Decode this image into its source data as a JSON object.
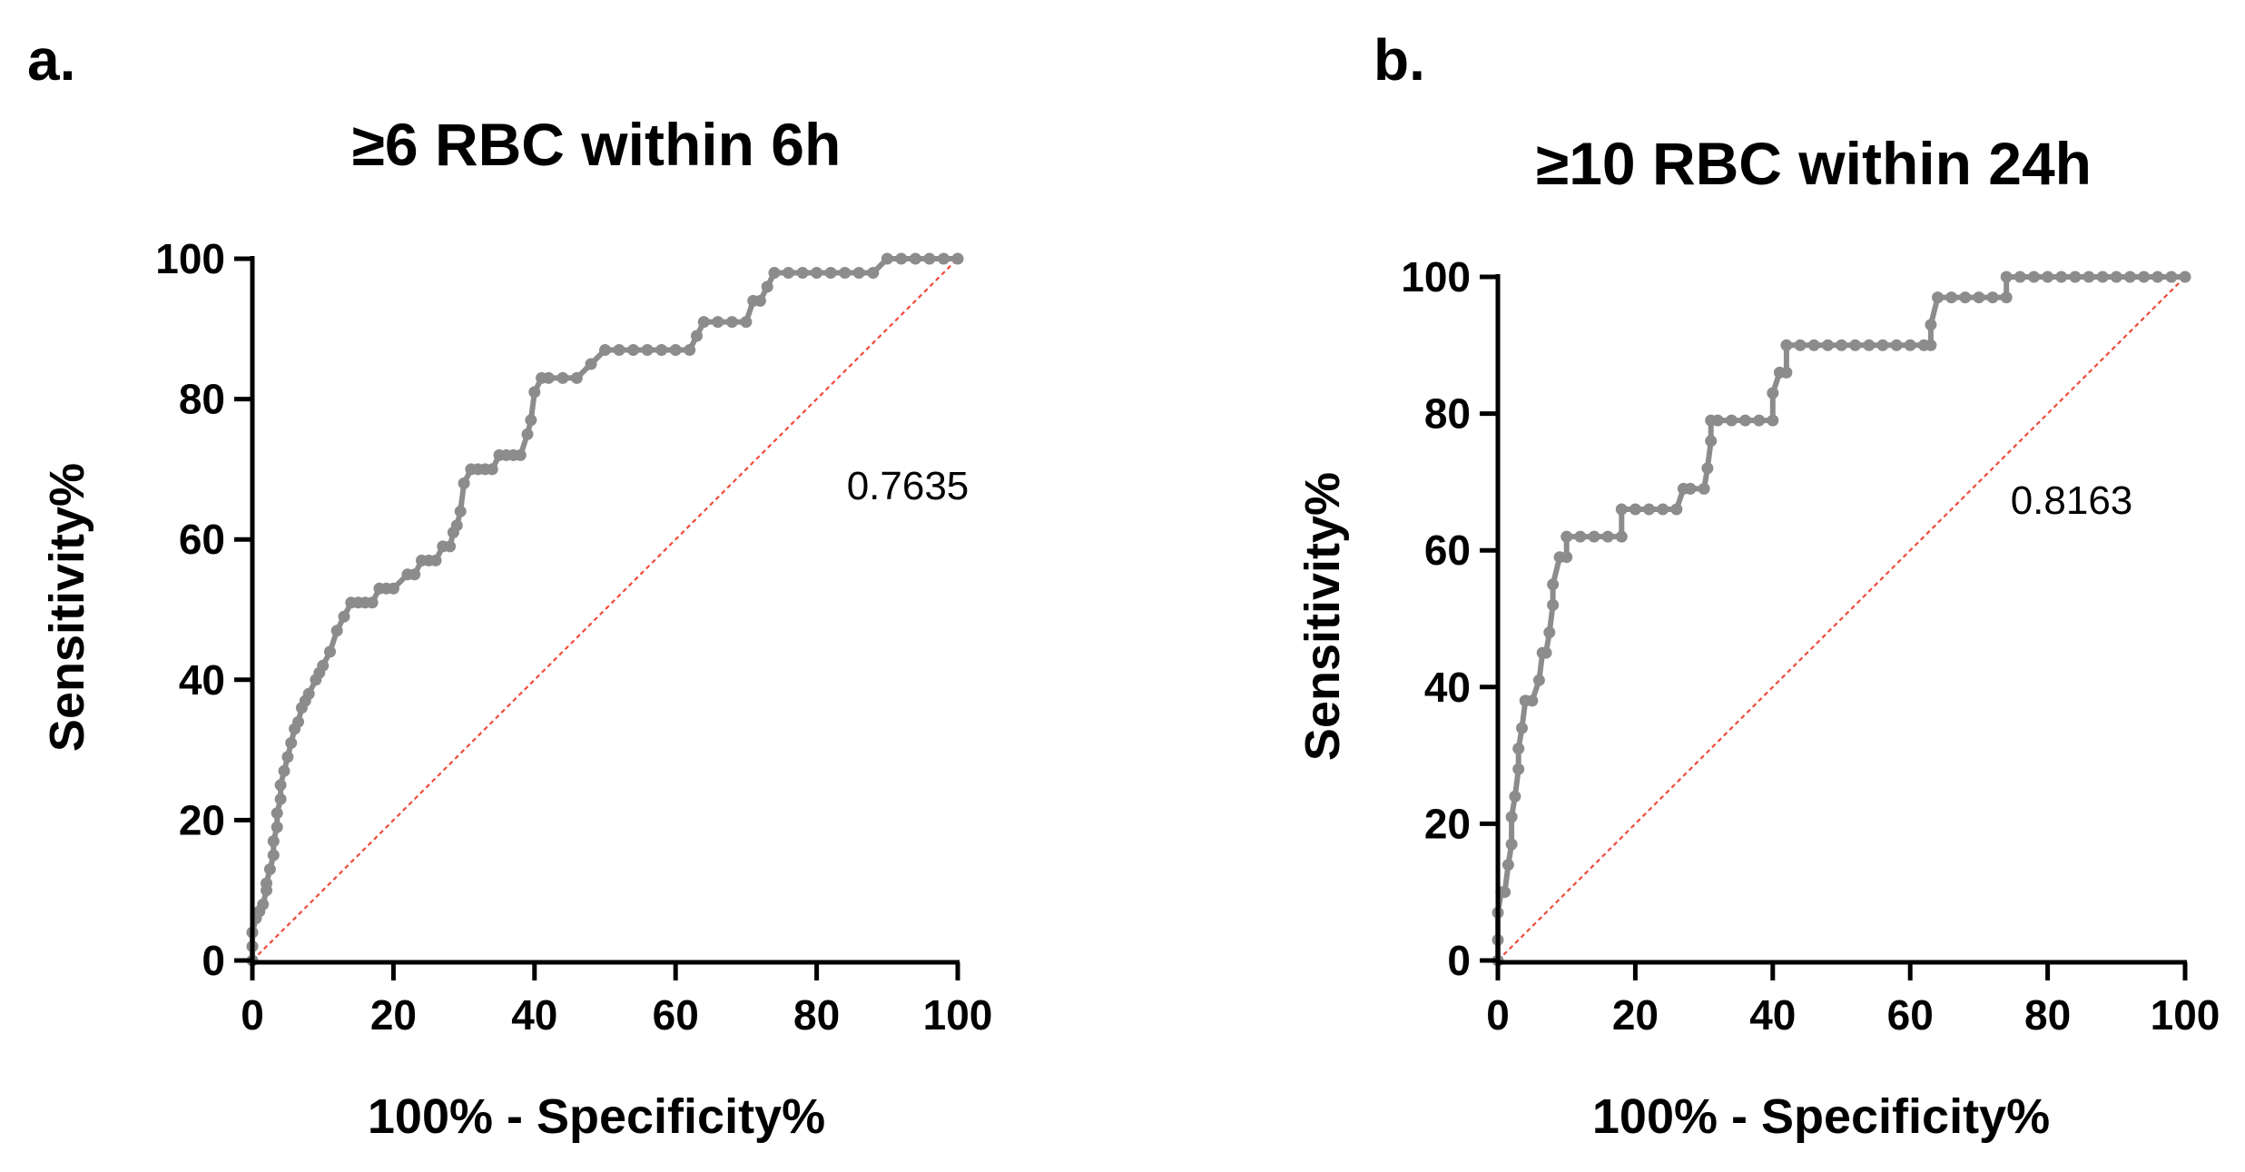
{
  "chart_data": [
    {
      "type": "line",
      "panel": "a.",
      "title": "≥6 RBC within 6h",
      "xlabel": "100% - Specificity%",
      "ylabel": "Sensitivity%",
      "xlim": [
        0,
        100
      ],
      "ylim": [
        0,
        100
      ],
      "xticks": [
        "0",
        "20",
        "40",
        "60",
        "80",
        "100"
      ],
      "yticks": [
        "0",
        "20",
        "40",
        "60",
        "80",
        "100"
      ],
      "grid": false,
      "auc_label": "0.7635",
      "colors": {
        "roc": "#8c8c8c",
        "reference": "#f04a3a",
        "axis": "#000000"
      },
      "series": [
        {
          "name": "ROC",
          "x": [
            0,
            0,
            0,
            0.5,
            1,
            1.5,
            2,
            2,
            2.5,
            3,
            3,
            3.5,
            3.5,
            4,
            4,
            4.5,
            5,
            5.5,
            6,
            6.5,
            7,
            7.5,
            8,
            9,
            9.5,
            10,
            11,
            12,
            13,
            14,
            15,
            16,
            17,
            18,
            19,
            20,
            22,
            23,
            24,
            25,
            26,
            27,
            28,
            28.5,
            29,
            29.5,
            30,
            31,
            32,
            33,
            34,
            35,
            36,
            37,
            38,
            39,
            39.5,
            40,
            41,
            42,
            44,
            46,
            48,
            50,
            52,
            54,
            56,
            58,
            60,
            62,
            63,
            64,
            66,
            68,
            70,
            71,
            72,
            73,
            74,
            76,
            78,
            80,
            82,
            84,
            86,
            88,
            90,
            92,
            94,
            96,
            98,
            100
          ],
          "y": [
            0,
            2,
            4,
            6,
            7,
            8,
            10,
            11,
            13,
            15,
            17,
            19,
            21,
            23,
            25,
            27,
            29,
            31,
            33,
            34,
            36,
            37,
            38,
            40,
            41,
            42,
            44,
            47,
            49,
            51,
            51,
            51,
            51,
            53,
            53,
            53,
            55,
            55,
            57,
            57,
            57,
            59,
            59,
            61,
            62,
            64,
            68,
            70,
            70,
            70,
            70,
            72,
            72,
            72,
            72,
            75,
            77,
            81,
            83,
            83,
            83,
            83,
            85,
            87,
            87,
            87,
            87,
            87,
            87,
            87,
            89,
            91,
            91,
            91,
            91,
            94,
            94,
            96,
            98,
            98,
            98,
            98,
            98,
            98,
            98,
            98,
            100,
            100,
            100,
            100,
            100,
            100
          ]
        }
      ]
    },
    {
      "type": "line",
      "panel": "b.",
      "title": "≥10 RBC within 24h",
      "xlabel": "100% - Specificity%",
      "ylabel": "Sensitivity%",
      "xlim": [
        0,
        100
      ],
      "ylim": [
        0,
        100
      ],
      "xticks": [
        "0",
        "20",
        "40",
        "60",
        "80",
        "100"
      ],
      "yticks": [
        "0",
        "20",
        "40",
        "60",
        "80",
        "100"
      ],
      "grid": false,
      "auc_label": "0.8163",
      "colors": {
        "roc": "#8c8c8c",
        "reference": "#f04a3a",
        "axis": "#000000"
      },
      "series": [
        {
          "name": "ROC",
          "x": [
            0,
            0,
            0,
            0.5,
            1,
            1.5,
            2,
            2,
            2.5,
            3,
            3,
            3.5,
            4,
            4,
            5,
            6,
            6.5,
            7,
            7.5,
            8,
            8,
            9,
            10,
            10,
            12,
            14,
            16,
            18,
            18,
            20,
            22,
            24,
            26,
            27,
            28,
            30,
            30.5,
            31,
            31,
            32,
            34,
            36,
            38,
            40,
            40,
            41,
            42,
            42,
            44,
            46,
            48,
            50,
            52,
            54,
            56,
            58,
            60,
            62,
            63,
            63,
            64,
            66,
            68,
            70,
            72,
            74,
            74,
            76,
            78,
            80,
            82,
            84,
            86,
            88,
            90,
            92,
            94,
            96,
            98,
            100
          ],
          "y": [
            0,
            3,
            7,
            10,
            10,
            14,
            17,
            21,
            24,
            28,
            31,
            34,
            38,
            38,
            38,
            41,
            45,
            45,
            48,
            52,
            55,
            59,
            59,
            62,
            62,
            62,
            62,
            62,
            66,
            66,
            66,
            66,
            66,
            69,
            69,
            69,
            72,
            76,
            79,
            79,
            79,
            79,
            79,
            79,
            83,
            86,
            86,
            90,
            90,
            90,
            90,
            90,
            90,
            90,
            90,
            90,
            90,
            90,
            90,
            93,
            97,
            97,
            97,
            97,
            97,
            97,
            100,
            100,
            100,
            100,
            100,
            100,
            100,
            100,
            100,
            100,
            100,
            100,
            100,
            100
          ]
        }
      ]
    }
  ]
}
